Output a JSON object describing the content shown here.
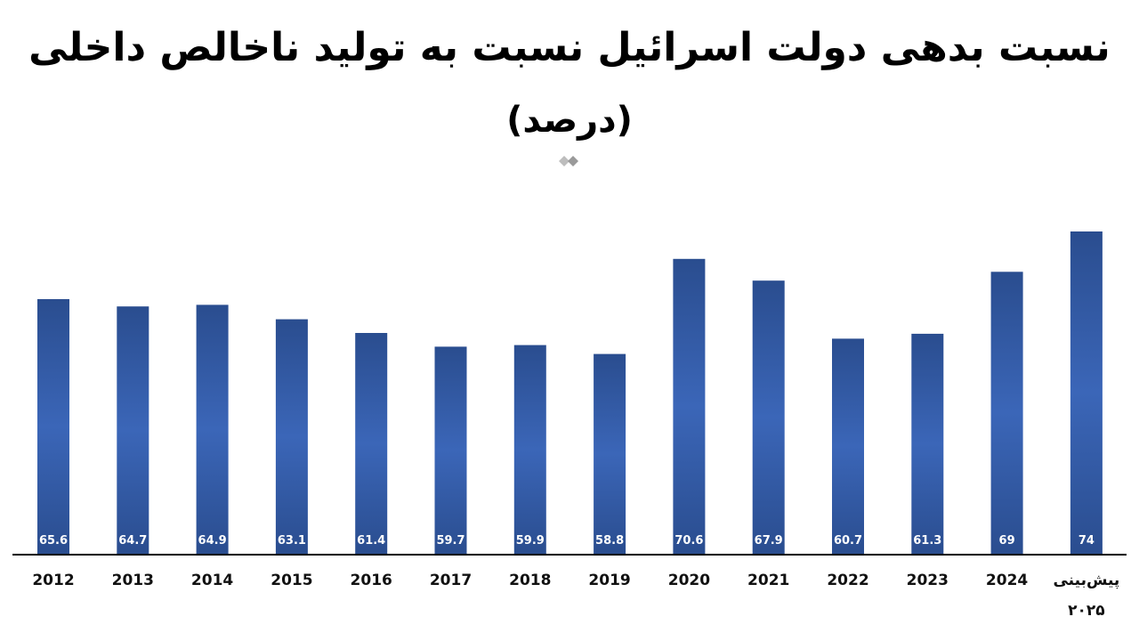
{
  "chart_data": {
    "type": "bar",
    "title": "نسبت بدهی دولت اسرائیل نسبت به تولید ناخالص داخلی",
    "subtitle": "(درصد)",
    "categories": [
      "2012",
      "2013",
      "2014",
      "2015",
      "2016",
      "2017",
      "2018",
      "2019",
      "2020",
      "2021",
      "2022",
      "2023",
      "2024",
      "پیش‌بینی ۲۰۲۵"
    ],
    "category_lines": [
      [
        "2012"
      ],
      [
        "2013"
      ],
      [
        "2014"
      ],
      [
        "2015"
      ],
      [
        "2016"
      ],
      [
        "2017"
      ],
      [
        "2018"
      ],
      [
        "2019"
      ],
      [
        "2020"
      ],
      [
        "2021"
      ],
      [
        "2022"
      ],
      [
        "2023"
      ],
      [
        "2024"
      ],
      [
        "پیش‌بینی",
        "۲۰۲۵"
      ]
    ],
    "values": [
      65.6,
      64.7,
      64.9,
      63.1,
      61.4,
      59.7,
      59.9,
      58.8,
      70.6,
      67.9,
      60.7,
      61.3,
      69,
      74
    ],
    "data_labels": [
      "65.6",
      "64.7",
      "64.9",
      "63.1",
      "61.4",
      "59.7",
      "59.9",
      "58.8",
      "70.6",
      "67.9",
      "60.7",
      "61.3",
      "69",
      "74"
    ],
    "xlabel": "",
    "ylabel": "",
    "ylim": [
      34,
      74
    ],
    "grid": false,
    "legend": "none",
    "bar_color": "#2d57a4",
    "bar_color_light": "#3b6bc2",
    "label_color": "#ffffff"
  },
  "logo": {
    "name": "diamond-logo-icon",
    "color": "#bdbdbd"
  }
}
